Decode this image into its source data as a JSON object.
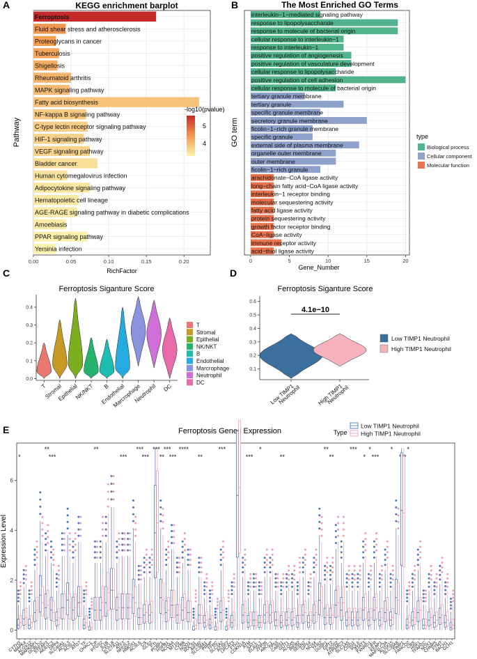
{
  "panel_labels": [
    "A",
    "B",
    "C",
    "D",
    "E"
  ],
  "colors": {
    "grid": "#e6e6e6",
    "axis": "#333333",
    "panel_bg": "#ffffff",
    "bio": "#52b48e",
    "cell": "#8ea1cb",
    "mol": "#e8734d",
    "low": "#3a6f9e",
    "high": "#f6b3be",
    "box_low": "#4a78b6",
    "box_high": "#ee9fae",
    "grad_high": "#c42a2a",
    "grad_mid": "#f29b50",
    "grad_low": "#fbf3b0"
  },
  "chart_data": [
    {
      "id": "A",
      "type": "bar",
      "title": "KEGG enrichment barplot",
      "xlabel": "RichFactor",
      "ylabel": "Pathway",
      "xlim": [
        0,
        0.235
      ],
      "xticks": [
        0.0,
        0.05,
        0.1,
        0.15,
        0.2
      ],
      "xtick_labels": [
        "0.00",
        "0.05",
        "0.10",
        "0.15",
        "0.20"
      ],
      "legend_title": "-log10(pvalue)",
      "legend_ticks": [
        "5",
        "4"
      ],
      "legend_range": [
        3.3,
        5.8
      ],
      "categories": [
        "Ferroptosis",
        "Fluid shear stress and atherosclerosis",
        "Proteoglycans in cancer",
        "Tuberculosis",
        "Shigellosis",
        "Rheumatoid arthritis",
        "MAPK signaling pathway",
        "Fatty acid biosynthesis",
        "NF-kappa B signaling pathway",
        "C-type lectin receptor signaling pathway",
        "HIF-1 signaling pathway",
        "VEGF signaling pathway",
        "Bladder cancer",
        "Human cytomegalovirus infection",
        "Adipocytokine signaling pathway",
        "Hematopoietic cell lineage",
        "AGE-RAGE signaling pathway in diabetic complications",
        "Amoebiasis",
        "PPAR signaling pathway",
        "Yersinia infection"
      ],
      "values": [
        0.163,
        0.043,
        0.03,
        0.034,
        0.032,
        0.05,
        0.048,
        0.22,
        0.07,
        0.072,
        0.067,
        0.075,
        0.085,
        0.045,
        0.075,
        0.06,
        0.058,
        0.043,
        0.072,
        0.03
      ],
      "pvalue_log10": [
        5.8,
        4.6,
        4.5,
        4.4,
        4.3,
        4.2,
        4.1,
        4.0,
        3.9,
        3.85,
        3.8,
        3.75,
        3.6,
        3.55,
        3.5,
        3.45,
        3.4,
        3.4,
        3.35,
        3.3
      ]
    },
    {
      "id": "B",
      "type": "bar",
      "title": "The Most Enriched GO Terms",
      "xlabel": "Gene_Number",
      "ylabel": "GO term",
      "xlim": [
        -0.8,
        20.5
      ],
      "xticks": [
        0,
        5,
        10,
        15,
        20
      ],
      "legend_title": "type",
      "legend_entries": [
        "Biological process",
        "Cellular component",
        "Molecular function"
      ],
      "categories": [
        "interleukin−1−mediated signaling pathway",
        "response to lipopolysaccharide",
        "response to molecule of bacterial origin",
        "cellular response to interleukin−1",
        "response to interleukin−1",
        "positive regulation of angiogenesis",
        "positive regulation of vasculature development",
        "cellular response to lipopolysaccharide",
        "positive regulation of cell adhesion",
        "cellular response to molecule of bacterial origin",
        "tertiary granule membrane",
        "tertiary granule",
        "specific granule membrane",
        "secretory granule membrane",
        "ficolin−1−rich granule membrane",
        "specific granule",
        "external side of plasma membrane",
        "organelle outer membrane",
        "outer membrane",
        "ficolin−1−rich granule",
        "arachidonate−CoA ligase activity",
        "long−chain fatty acid−CoA ligase activity",
        "interleukin−1 receptor binding",
        "molecular sequestering activity",
        "fatty acid ligase activity",
        "protein sequestering activity",
        "growth factor receptor binding",
        "CoA−ligase activity",
        "immune receptor activity",
        "acid−thiol ligase activity"
      ],
      "values": [
        9,
        19,
        19,
        12,
        12,
        13,
        13,
        11,
        20,
        11,
        7,
        12,
        9,
        15,
        8,
        8,
        14,
        11,
        11,
        9,
        3,
        3,
        3,
        3,
        3,
        3,
        3,
        3,
        4,
        3
      ],
      "groups": [
        "bio",
        "bio",
        "bio",
        "bio",
        "bio",
        "bio",
        "bio",
        "bio",
        "bio",
        "bio",
        "cell",
        "cell",
        "cell",
        "cell",
        "cell",
        "cell",
        "cell",
        "cell",
        "cell",
        "cell",
        "mol",
        "mol",
        "mol",
        "mol",
        "mol",
        "mol",
        "mol",
        "mol",
        "mol",
        "mol"
      ]
    },
    {
      "id": "C",
      "type": "violin",
      "title": "Ferroptosis Siganture Score",
      "ylim": [
        -0.01,
        0.47
      ],
      "yticks": [
        0.0,
        0.1,
        0.2,
        0.3,
        0.4
      ],
      "ytick_labels": [
        "0.0",
        "0.1",
        "0.2",
        "0.3",
        "0.4"
      ],
      "categories": [
        "T",
        "Stromal",
        "Epithelial",
        "NK/NKT",
        "B",
        "Endothelial",
        "Marcrophage",
        "Neutrophil",
        "DC"
      ],
      "colors": [
        "#e8786f",
        "#c49a25",
        "#7caf1f",
        "#24b46c",
        "#1ebdb0",
        "#26abe0",
        "#8a93dd",
        "#cf6fd8",
        "#e96aa8"
      ],
      "medians": [
        0.04,
        0.08,
        0.08,
        0.04,
        0.04,
        0.06,
        0.27,
        0.25,
        0.16
      ],
      "minima": [
        0.0,
        0.0,
        0.0,
        0.0,
        0.0,
        0.0,
        0.07,
        0.06,
        0.0
      ],
      "maxima": [
        0.2,
        0.33,
        0.45,
        0.23,
        0.22,
        0.4,
        0.46,
        0.44,
        0.34
      ]
    },
    {
      "id": "D",
      "type": "violin",
      "title": "Ferroptosis Siganture Score",
      "ylim": [
        0.02,
        0.64
      ],
      "yticks": [
        0.1,
        0.2,
        0.3,
        0.4,
        0.5,
        0.6
      ],
      "ytick_labels": [
        "0.1",
        "0.2",
        "0.3",
        "0.4",
        "0.5",
        "0.6"
      ],
      "categories": [
        "Low TIMP1 Neutrophil",
        "High TIMP1 Neutrophil"
      ],
      "tick_lines": [
        [
          "Low TIMP1",
          "Neutrophil"
        ],
        [
          "High TIMP1",
          "Neutrophil"
        ]
      ],
      "medians": [
        0.2,
        0.24
      ],
      "minima": [
        0.03,
        0.12
      ],
      "maxima": [
        0.36,
        0.36
      ],
      "pvalue_label": "4.1e−10",
      "legend_entries": [
        "Low TIMP1 Neutrophil",
        "High TIMP1 Neutrophil"
      ]
    },
    {
      "id": "E",
      "type": "boxplot",
      "title": "Ferroptosis Genes Expression",
      "ylabel": "Expression Level",
      "ylim": [
        -0.35,
        7.5
      ],
      "yticks": [
        0,
        2,
        4,
        6
      ],
      "legend_title": "Type",
      "legend_entries": [
        "Low TIMP1 Neutrophil",
        "High TIMP1 Neutrophil"
      ],
      "genes": [
        "CYTH3",
        "MAPK4",
        "ALOX12",
        "MAPKAP1",
        "DCBLD2",
        "STEAP3",
        "AKR1C3",
        "DPP4",
        "SLC40A1",
        "ACSL3",
        "ACSL1",
        "ATG7",
        "TF",
        "CHAC1",
        "CP",
        "PTGS2",
        "IL1B",
        "CXCL8",
        "SLC7A11",
        "ATF3",
        "NFE2L2",
        "HMOX1",
        "ACSL6",
        "CS",
        "GLS2",
        "FTL",
        "PCBP1",
        "HSPB1",
        "NCOA4",
        "MT1G",
        "CYBB",
        "NQO1",
        "SOCS1",
        "AIFM2",
        "SLC38A1",
        "PRNP",
        "TFRC",
        "SLC3A2",
        "ACSF2",
        "LPCAT3",
        "FTH1",
        "CDKN1A",
        "ATM",
        "SAT1",
        "ELAVL1",
        "ZFP36",
        "ABCC1",
        "TP53",
        "CARS1",
        "GOT1",
        "ALOX5",
        "IREB2",
        "SESN2",
        "GPX4",
        "NOX4",
        "TFR2",
        "DUSP1",
        "GPT2",
        "FADS2",
        "ATP5MC3",
        "SLC1A5",
        "CISD1",
        "SQLE",
        "STAT3",
        "TXNRD1",
        "LIFR",
        "KEAP1",
        "MAP1LC3A",
        "ALOX15",
        "SLC39A8",
        "TIMP1",
        "FANCD2",
        "CBS",
        "HSF1",
        "TFAP2C",
        "NOX1",
        "CHMP5",
        "FTMT",
        "BACH1",
        "GCH1"
      ],
      "low_medians": [
        0.2,
        0.45,
        0.2,
        0.7,
        1.4,
        0.9,
        0.8,
        0.4,
        0.9,
        1.2,
        0.8,
        1.1,
        0.2,
        0.0,
        0.8,
        0.8,
        1.1,
        1.6,
        0.8,
        0.9,
        0.9,
        1.3,
        0.5,
        0.6,
        0.6,
        3.9,
        1.3,
        0.7,
        1.0,
        0.6,
        0.8,
        0.7,
        0.0,
        0.6,
        0.3,
        0.2,
        0.0,
        0.7,
        0.0,
        0.3,
        5.4,
        0.6,
        0.3,
        0.4,
        0.3,
        0.6,
        0.6,
        0.4,
        0.3,
        0.4,
        0.4,
        0.3,
        0.6,
        0.3,
        0.6,
        1.2,
        0.5,
        0.5,
        1.0,
        0.8,
        0.4,
        0.4,
        0.4,
        0.8,
        0.4,
        0.8,
        0.4,
        0.7,
        0.4,
        1.3,
        4.8,
        0.2,
        0.4,
        0.7,
        0.2,
        0.4,
        0.3,
        0.5,
        0.3,
        0.1
      ],
      "high_medians": [
        0.3,
        0.5,
        0.3,
        0.8,
        1.1,
        1.0,
        0.7,
        0.5,
        0.9,
        0.9,
        0.9,
        1.1,
        0.3,
        0.1,
        0.8,
        1.1,
        1.5,
        1.6,
        0.9,
        0.9,
        0.9,
        1.1,
        0.5,
        0.7,
        0.7,
        4.3,
        1.2,
        0.8,
        1.0,
        0.6,
        0.9,
        0.7,
        0.2,
        0.6,
        0.4,
        0.3,
        0.1,
        0.8,
        0.2,
        0.4,
        5.7,
        0.7,
        0.4,
        0.4,
        0.3,
        0.7,
        0.7,
        0.4,
        0.4,
        0.5,
        0.5,
        0.6,
        0.7,
        0.4,
        0.7,
        1.1,
        0.6,
        0.6,
        1.1,
        1.1,
        0.5,
        0.5,
        0.5,
        0.9,
        0.5,
        0.9,
        0.5,
        0.8,
        0.5,
        1.2,
        4.7,
        0.3,
        0.5,
        0.8,
        0.2,
        0.5,
        0.4,
        0.6,
        0.4,
        0.2
      ],
      "significance": [
        {
          "gene_index": 0,
          "stars": "*",
          "row": 2
        },
        {
          "gene_index": 5,
          "stars": "**",
          "row": 1
        },
        {
          "gene_index": 6,
          "stars": "***",
          "row": 2
        },
        {
          "gene_index": 14,
          "stars": "**",
          "row": 1
        },
        {
          "gene_index": 19,
          "stars": "***",
          "row": 2
        },
        {
          "gene_index": 22,
          "stars": "***",
          "row": 1
        },
        {
          "gene_index": 23,
          "stars": "***",
          "row": 2
        },
        {
          "gene_index": 25,
          "stars": "***",
          "row": 1
        },
        {
          "gene_index": 26,
          "stars": "**",
          "row": 2
        },
        {
          "gene_index": 27,
          "stars": "***",
          "row": 1
        },
        {
          "gene_index": 28,
          "stars": "***",
          "row": 2
        },
        {
          "gene_index": 30,
          "stars": "****",
          "row": 1
        },
        {
          "gene_index": 33,
          "stars": "**",
          "row": 2
        },
        {
          "gene_index": 37,
          "stars": "***",
          "row": 1
        },
        {
          "gene_index": 42,
          "stars": "***",
          "row": 2
        },
        {
          "gene_index": 44,
          "stars": "*",
          "row": 1
        },
        {
          "gene_index": 48,
          "stars": "**",
          "row": 2
        },
        {
          "gene_index": 56,
          "stars": "**",
          "row": 1
        },
        {
          "gene_index": 57,
          "stars": "**",
          "row": 2
        },
        {
          "gene_index": 61,
          "stars": "***",
          "row": 1
        },
        {
          "gene_index": 63,
          "stars": "*",
          "row": 2
        },
        {
          "gene_index": 64,
          "stars": "*",
          "row": 1
        },
        {
          "gene_index": 65,
          "stars": "***",
          "row": 2
        },
        {
          "gene_index": 68,
          "stars": "*",
          "row": 1
        },
        {
          "gene_index": 70,
          "stars": "***",
          "row": 2
        },
        {
          "gene_index": 71,
          "stars": "*",
          "row": 1
        }
      ]
    }
  ]
}
